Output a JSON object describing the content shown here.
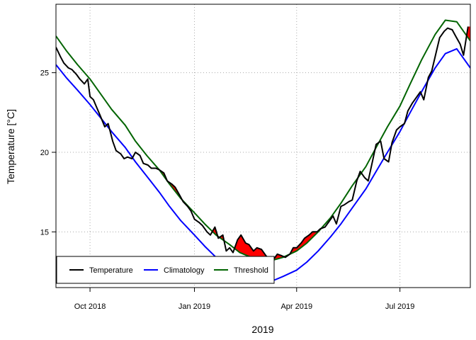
{
  "chart_data": {
    "type": "line",
    "title": "",
    "xlabel": "2019",
    "ylabel": "Temperature [°C]",
    "xlim": [
      "2018-09-01",
      "2019-09-01"
    ],
    "ylim": [
      11.5,
      29.3
    ],
    "x_ticks": [
      {
        "date": "2018-10-01",
        "label": "Oct 2018"
      },
      {
        "date": "2019-01-01",
        "label": "Jan 2019"
      },
      {
        "date": "2019-04-01",
        "label": "Apr 2019"
      },
      {
        "date": "2019-07-01",
        "label": "Jul 2019"
      }
    ],
    "y_ticks": [
      15,
      20,
      25
    ],
    "grid": true,
    "legend_position": "bottom-left",
    "series": [
      {
        "name": "Temperature",
        "color": "#000000",
        "x": [
          "2018-09-01",
          "2018-09-05",
          "2018-09-08",
          "2018-09-12",
          "2018-09-15",
          "2018-09-19",
          "2018-09-22",
          "2018-09-26",
          "2018-09-29",
          "2018-10-01",
          "2018-10-04",
          "2018-10-07",
          "2018-10-10",
          "2018-10-14",
          "2018-10-17",
          "2018-10-21",
          "2018-10-24",
          "2018-10-28",
          "2018-10-31",
          "2018-11-03",
          "2018-11-07",
          "2018-11-10",
          "2018-11-14",
          "2018-11-17",
          "2018-11-21",
          "2018-11-24",
          "2018-11-28",
          "2018-12-01",
          "2018-12-05",
          "2018-12-08",
          "2018-12-12",
          "2018-12-15",
          "2018-12-19",
          "2018-12-22",
          "2018-12-26",
          "2018-12-29",
          "2019-01-01",
          "2019-01-05",
          "2019-01-08",
          "2019-01-12",
          "2019-01-15",
          "2019-01-19",
          "2019-01-22",
          "2019-01-26",
          "2019-01-29",
          "2019-02-01",
          "2019-02-04",
          "2019-02-08",
          "2019-02-11",
          "2019-02-15",
          "2019-02-18",
          "2019-02-22",
          "2019-02-25",
          "2019-03-01",
          "2019-03-05",
          "2019-03-08",
          "2019-03-12",
          "2019-03-15",
          "2019-03-19",
          "2019-03-22",
          "2019-03-26",
          "2019-03-29",
          "2019-04-01",
          "2019-04-05",
          "2019-04-08",
          "2019-04-12",
          "2019-04-15",
          "2019-04-19",
          "2019-04-22",
          "2019-04-26",
          "2019-04-29",
          "2019-05-03",
          "2019-05-06",
          "2019-05-10",
          "2019-05-13",
          "2019-05-17",
          "2019-05-20",
          "2019-05-24",
          "2019-05-27",
          "2019-05-31",
          "2019-06-03",
          "2019-06-07",
          "2019-06-10",
          "2019-06-14",
          "2019-06-17",
          "2019-06-21",
          "2019-06-24",
          "2019-06-28",
          "2019-07-01",
          "2019-07-05",
          "2019-07-08",
          "2019-07-12",
          "2019-07-15",
          "2019-07-19",
          "2019-07-22",
          "2019-07-26",
          "2019-07-29",
          "2019-08-02",
          "2019-08-05",
          "2019-08-09",
          "2019-08-12",
          "2019-08-16",
          "2019-08-19",
          "2019-08-23",
          "2019-08-26",
          "2019-08-30"
        ],
        "values": [
          26.6,
          26.0,
          25.6,
          25.3,
          25.2,
          24.9,
          24.6,
          24.3,
          24.6,
          23.5,
          23.3,
          22.8,
          22.3,
          21.6,
          21.8,
          20.7,
          20.1,
          19.9,
          19.6,
          19.7,
          19.6,
          20.0,
          19.8,
          19.3,
          19.2,
          19.0,
          19.0,
          18.9,
          18.7,
          18.2,
          18.0,
          17.8,
          17.3,
          16.9,
          16.6,
          16.3,
          15.8,
          15.6,
          15.4,
          15.0,
          14.8,
          15.3,
          14.6,
          14.8,
          13.8,
          14.0,
          13.7,
          14.5,
          14.8,
          14.3,
          14.2,
          13.8,
          14.0,
          13.9,
          13.5,
          13.3,
          13.3,
          13.6,
          13.5,
          13.4,
          13.6,
          14.0,
          14.0,
          14.3,
          14.6,
          14.8,
          15.0,
          15.0,
          15.2,
          15.3,
          15.6,
          16.0,
          15.5,
          16.6,
          16.7,
          16.9,
          17.0,
          18.2,
          18.8,
          18.4,
          18.2,
          19.5,
          20.5,
          20.7,
          19.6,
          19.4,
          20.6,
          21.4,
          21.6,
          21.8,
          22.6,
          23.1,
          23.4,
          23.8,
          23.3,
          24.7,
          25.1,
          26.3,
          27.2,
          27.6,
          27.8,
          27.7,
          27.3,
          26.8,
          26.1,
          27.9
        ]
      },
      {
        "name": "Climatology",
        "color": "#0000ff",
        "x": [
          "2018-09-01",
          "2018-09-10",
          "2018-09-20",
          "2018-10-01",
          "2018-10-10",
          "2018-10-20",
          "2018-11-01",
          "2018-11-10",
          "2018-11-20",
          "2018-12-01",
          "2018-12-10",
          "2018-12-20",
          "2019-01-01",
          "2019-01-10",
          "2019-01-20",
          "2019-02-01",
          "2019-02-10",
          "2019-02-20",
          "2019-03-01",
          "2019-03-10",
          "2019-03-20",
          "2019-04-01",
          "2019-04-10",
          "2019-04-20",
          "2019-05-01",
          "2019-05-10",
          "2019-05-20",
          "2019-06-01",
          "2019-06-10",
          "2019-06-20",
          "2019-07-01",
          "2019-07-10",
          "2019-07-20",
          "2019-08-01",
          "2019-08-10",
          "2019-08-20",
          "2019-09-01"
        ],
        "values": [
          25.5,
          24.7,
          23.9,
          23.0,
          22.2,
          21.3,
          20.3,
          19.4,
          18.5,
          17.5,
          16.6,
          15.7,
          14.8,
          14.1,
          13.4,
          12.7,
          12.3,
          12.0,
          11.8,
          11.9,
          12.2,
          12.6,
          13.1,
          13.8,
          14.7,
          15.5,
          16.5,
          17.7,
          18.8,
          20.0,
          21.3,
          22.5,
          23.8,
          25.3,
          26.2,
          26.5,
          25.3
        ]
      },
      {
        "name": "Threshold",
        "color": "#006400",
        "x": [
          "2018-09-01",
          "2018-09-10",
          "2018-09-20",
          "2018-10-01",
          "2018-10-10",
          "2018-10-20",
          "2018-11-01",
          "2018-11-10",
          "2018-11-20",
          "2018-12-01",
          "2018-12-10",
          "2018-12-20",
          "2019-01-01",
          "2019-01-10",
          "2019-01-20",
          "2019-02-01",
          "2019-02-10",
          "2019-02-20",
          "2019-03-01",
          "2019-03-10",
          "2019-03-20",
          "2019-04-01",
          "2019-04-10",
          "2019-04-20",
          "2019-05-01",
          "2019-05-10",
          "2019-05-20",
          "2019-06-01",
          "2019-06-10",
          "2019-06-20",
          "2019-07-01",
          "2019-07-10",
          "2019-07-20",
          "2019-08-01",
          "2019-08-10",
          "2019-08-20",
          "2019-09-01"
        ],
        "values": [
          27.3,
          26.4,
          25.5,
          24.6,
          23.7,
          22.7,
          21.7,
          20.7,
          19.8,
          18.9,
          18.0,
          17.1,
          16.2,
          15.5,
          14.8,
          14.2,
          13.7,
          13.4,
          13.2,
          13.2,
          13.4,
          13.8,
          14.3,
          15.0,
          15.9,
          16.8,
          17.9,
          19.1,
          20.3,
          21.6,
          22.9,
          24.3,
          25.8,
          27.4,
          28.3,
          28.2,
          27.0
        ]
      }
    ],
    "event_fill": {
      "name": "Event",
      "color": "#ff0000",
      "highlight_color": "#e8554a"
    }
  },
  "legend": {
    "items": [
      {
        "label": "Temperature",
        "color": "#000000"
      },
      {
        "label": "Climatology",
        "color": "#0000ff"
      },
      {
        "label": "Threshold",
        "color": "#006400"
      }
    ]
  }
}
